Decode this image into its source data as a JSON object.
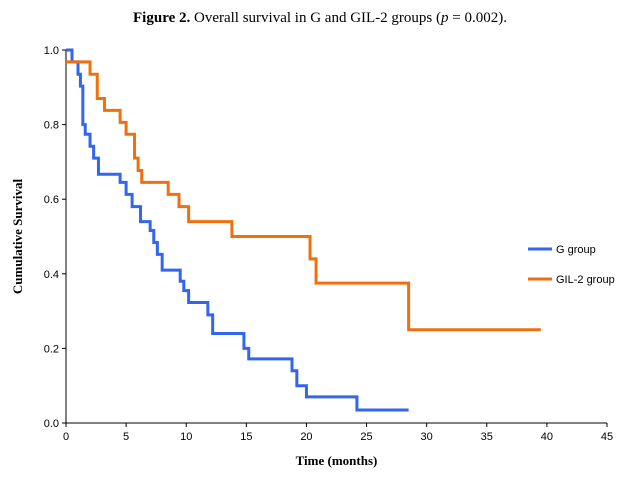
{
  "figure": {
    "title_bold": "Figure 2.",
    "title_pre": " Overall survival in G and GIL-2 groups (",
    "title_p": "p",
    "title_post": " = 0.002)."
  },
  "chart_data": {
    "type": "line",
    "step": true,
    "xlabel": "Time (months)",
    "ylabel": "Cumulative Survival",
    "xlim": [
      0,
      45
    ],
    "ylim": [
      0,
      1.0
    ],
    "xticks": [
      0,
      5,
      10,
      15,
      20,
      25,
      30,
      35,
      40,
      45
    ],
    "yticks": [
      0.0,
      0.2,
      0.4,
      0.6,
      0.8,
      1.0
    ],
    "ytick_labels": [
      "0.0",
      "0.2",
      "0.4",
      "0.6",
      "0.8",
      "1.0"
    ],
    "grid": false,
    "legend_position": "right",
    "series": [
      {
        "name": "G group",
        "color": "#3366ee",
        "x": [
          0,
          0.5,
          1.0,
          1.2,
          1.4,
          1.6,
          2.0,
          2.3,
          2.7,
          4.5,
          5.0,
          5.5,
          6.2,
          7.0,
          7.3,
          7.6,
          8.0,
          9.5,
          9.8,
          10.2,
          11.8,
          12.2,
          14.8,
          15.2,
          18.8,
          19.2,
          20.0,
          24.2,
          28.5
        ],
        "y": [
          1.0,
          0.968,
          0.935,
          0.903,
          0.8,
          0.774,
          0.742,
          0.71,
          0.667,
          0.645,
          0.613,
          0.58,
          0.54,
          0.516,
          0.484,
          0.452,
          0.41,
          0.38,
          0.355,
          0.323,
          0.29,
          0.24,
          0.2,
          0.172,
          0.14,
          0.1,
          0.07,
          0.035,
          0.035
        ]
      },
      {
        "name": "GIL-2 group",
        "color": "#f07010",
        "x": [
          0,
          2.0,
          2.6,
          3.2,
          4.5,
          5.0,
          5.7,
          6.0,
          6.3,
          8.5,
          9.4,
          10.2,
          13.8,
          20.3,
          20.8,
          28.5,
          39.5
        ],
        "y": [
          0.968,
          0.935,
          0.87,
          0.838,
          0.806,
          0.774,
          0.71,
          0.677,
          0.645,
          0.613,
          0.58,
          0.54,
          0.5,
          0.44,
          0.375,
          0.25,
          0.25
        ]
      }
    ]
  }
}
